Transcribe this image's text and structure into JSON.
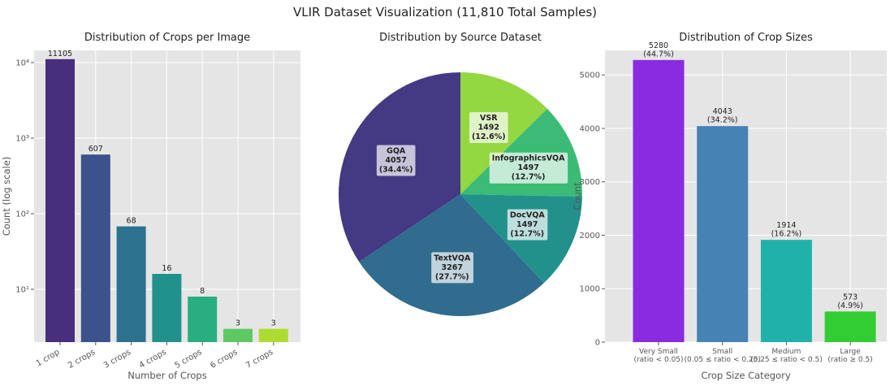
{
  "title": "VLIR Dataset Visualization (11,810 Total Samples)",
  "chart_data": [
    {
      "type": "bar",
      "title": "Distribution of Crops per Image",
      "x_label": "Number of Crops",
      "y_label": "Count (log scale)",
      "categories": [
        "1 crop",
        "2 crops",
        "3 crops",
        "4 crops",
        "5 crops",
        "6 crops",
        "7 crops"
      ],
      "values": [
        11105,
        607,
        68,
        16,
        8,
        3,
        3
      ],
      "colors": [
        "#472f7d",
        "#3b528b",
        "#2c718e",
        "#21918c",
        "#28ae80",
        "#5ec962",
        "#addc30"
      ],
      "log_scale": true,
      "ylim": [
        2,
        14500
      ],
      "yticks": [
        {
          "value": 10,
          "label": "10¹"
        },
        {
          "value": 100,
          "label": "10²"
        },
        {
          "value": 1000,
          "label": "10³"
        },
        {
          "value": 10000,
          "label": "10⁴"
        }
      ],
      "grid": true
    },
    {
      "type": "pie",
      "title": "Distribution by Source Dataset",
      "categories": [
        "VSR",
        "InfographicsVQA",
        "DocVQA",
        "TextVQA",
        "GQA"
      ],
      "values": [
        1492,
        1497,
        1497,
        3267,
        4057
      ],
      "percent_labels": [
        "(12.6%)",
        "(12.7%)",
        "(12.7%)",
        "(27.7%)",
        "(34.4%)"
      ],
      "colors": [
        "#93d741",
        "#3bbb75",
        "#23918b",
        "#2f6c8e",
        "#443983"
      ]
    },
    {
      "type": "bar",
      "title": "Distribution of Crop Sizes",
      "x_label": "Crop Size Category",
      "y_label": "Count",
      "categories": [
        "Very Small\n(ratio < 0.05)",
        "Small\n(0.05 ≤ ratio < 0.25)",
        "Medium\n(0.25 ≤ ratio < 0.5)",
        "Large\n(ratio ≥ 0.5)"
      ],
      "values": [
        5280,
        4043,
        1914,
        573
      ],
      "value_labels": [
        "5280\n(44.7%)",
        "4043\n(34.2%)",
        "1914\n(16.2%)",
        "573\n(4.9%)"
      ],
      "colors": [
        "#8a2be2",
        "#4682b4",
        "#20b2aa",
        "#32cd32"
      ],
      "log_scale": false,
      "ylim": [
        0,
        5460
      ],
      "yticks": [
        0,
        1000,
        2000,
        3000,
        4000,
        5000
      ],
      "grid": true
    }
  ]
}
